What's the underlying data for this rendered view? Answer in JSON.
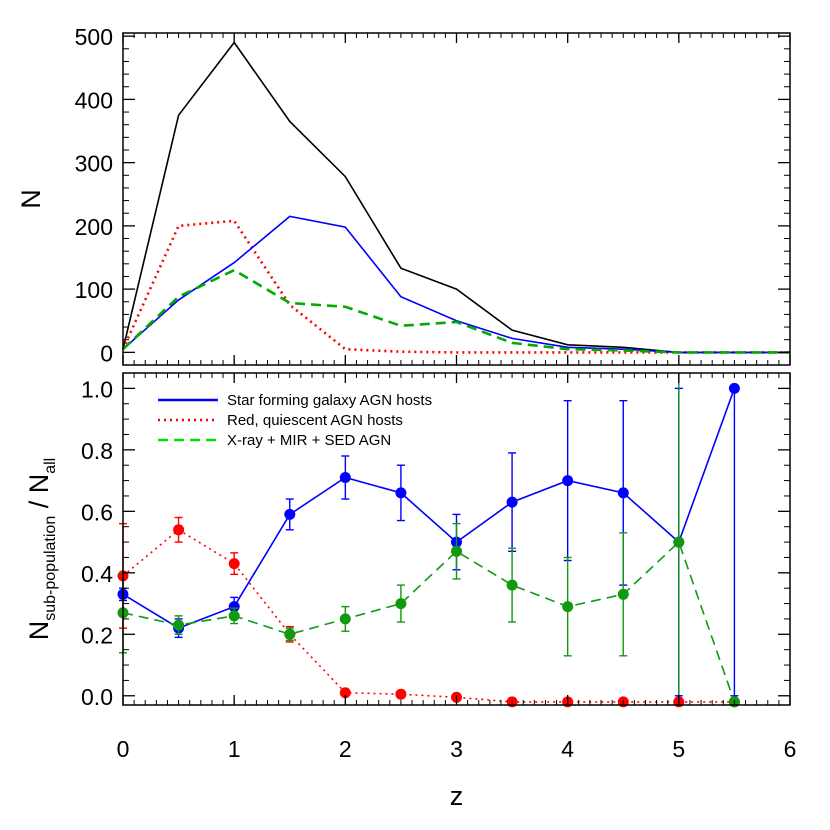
{
  "colors": {
    "all": "#000000",
    "star_forming": "#0000ff",
    "red_quiescent": "#ff0000",
    "xray_mir_sed": "#00aa00",
    "xray_mir_sed_legend": "#00dd00",
    "ratio_xray_mir_sed": "#119911"
  },
  "chart_data": [
    {
      "type": "line",
      "panel": "top",
      "xlabel": "",
      "ylabel": "N",
      "xlim": [
        0,
        6
      ],
      "ylim": [
        -20,
        505
      ],
      "x_ticks": [
        0,
        1,
        2,
        3,
        4,
        5,
        6
      ],
      "x_tick_labels": [
        "",
        "",
        "",
        "",
        "",
        "",
        ""
      ],
      "y_ticks": [
        0,
        100,
        200,
        300,
        400,
        500
      ],
      "y_tick_labels": [
        "0",
        "100",
        "200",
        "300",
        "400",
        "500"
      ],
      "x": [
        0,
        0.5,
        1,
        1.5,
        2,
        2.5,
        3,
        3.5,
        4,
        4.5,
        5,
        5.5,
        6
      ],
      "series": [
        {
          "key": "all",
          "style": "solid",
          "values": [
            5,
            375,
            490,
            365,
            278,
            133,
            100,
            35,
            12,
            8,
            0,
            0,
            0
          ]
        },
        {
          "key": "red_quiescent",
          "style": "dotted",
          "values": [
            5,
            200,
            208,
            75,
            5,
            1,
            0,
            0,
            0,
            0,
            0,
            0,
            0
          ]
        },
        {
          "key": "star_forming",
          "style": "solid",
          "values": [
            5,
            83,
            142,
            215,
            198,
            88,
            50,
            22,
            8,
            5,
            0,
            0,
            0
          ]
        },
        {
          "key": "xray_mir_sed",
          "style": "dashed",
          "values": [
            5,
            88,
            130,
            78,
            72,
            42,
            48,
            15,
            5,
            3,
            0,
            0,
            0
          ]
        }
      ]
    },
    {
      "type": "line",
      "panel": "bottom",
      "xlabel": "z",
      "ylabel_main": "N",
      "ylabel_sub": "sub-population",
      "ylabel_div": " / N",
      "ylabel_sub2": "all",
      "xlim": [
        0,
        6
      ],
      "ylim": [
        -0.03,
        1.05
      ],
      "x_ticks": [
        0,
        1,
        2,
        3,
        4,
        5,
        6
      ],
      "x_tick_labels": [
        "0",
        "1",
        "2",
        "3",
        "4",
        "5",
        "6"
      ],
      "y_ticks": [
        0,
        0.2,
        0.4,
        0.6,
        0.8,
        1.0
      ],
      "y_tick_labels": [
        "0.0",
        "0.2",
        "0.4",
        "0.6",
        "0.8",
        "1.0"
      ],
      "legend": {
        "placement": "top-left",
        "entries": [
          {
            "key": "star_forming",
            "style": "solid",
            "label": "Star forming galaxy AGN hosts"
          },
          {
            "key": "red_quiescent",
            "style": "dotted",
            "label": "Red, quiescent AGN hosts"
          },
          {
            "key": "xray_mir_sed",
            "style": "dashed",
            "label": "X-ray + MIR + SED AGN"
          }
        ]
      },
      "series": [
        {
          "key": "star_forming",
          "style": "solid",
          "markers": true,
          "x": [
            0,
            0.5,
            1,
            1.5,
            2,
            2.5,
            3,
            3.5,
            4,
            4.5,
            5,
            5.5
          ],
          "y": [
            0.33,
            0.22,
            0.29,
            0.59,
            0.71,
            0.66,
            0.5,
            0.63,
            0.7,
            0.66,
            0.5,
            1.0
          ],
          "err_low": [
            0.02,
            0.03,
            0.03,
            0.05,
            0.07,
            0.09,
            0.09,
            0.16,
            0.26,
            0.3,
            0.5,
            1.0
          ],
          "err_high": [
            0.02,
            0.03,
            0.03,
            0.05,
            0.07,
            0.09,
            0.09,
            0.16,
            0.26,
            0.3,
            0.5,
            0.0
          ]
        },
        {
          "key": "red_quiescent",
          "style": "dotted",
          "markers": true,
          "x": [
            0,
            0.5,
            1,
            1.5,
            2,
            2.5,
            3,
            3.5,
            4,
            4.5,
            5,
            5.5
          ],
          "y": [
            0.39,
            0.54,
            0.43,
            0.2,
            0.01,
            0.005,
            -0.005,
            -0.02,
            -0.02,
            -0.02,
            -0.02,
            -0.02
          ],
          "err_low": [
            0.17,
            0.04,
            0.035,
            0.025,
            0.005,
            0.005,
            0.005,
            0,
            0,
            0,
            0,
            0
          ],
          "err_high": [
            0.17,
            0.04,
            0.035,
            0.025,
            0.005,
            0.005,
            0.005,
            0,
            0,
            0,
            0,
            0
          ]
        },
        {
          "key": "ratio_xray_mir_sed",
          "style": "dashed",
          "markers": true,
          "x": [
            0,
            0.5,
            1,
            1.5,
            2,
            2.5,
            3,
            3.5,
            4,
            4.5,
            5,
            5.5
          ],
          "y": [
            0.27,
            0.23,
            0.26,
            0.2,
            0.25,
            0.3,
            0.47,
            0.36,
            0.29,
            0.33,
            0.5,
            -0.02
          ],
          "err_low": [
            0.13,
            0.03,
            0.025,
            0.02,
            0.04,
            0.06,
            0.09,
            0.12,
            0.16,
            0.2,
            0.55,
            0
          ],
          "err_high": [
            0.13,
            0.03,
            0.025,
            0.02,
            0.04,
            0.06,
            0.09,
            0.12,
            0.16,
            0.2,
            0.6,
            0
          ]
        }
      ]
    }
  ]
}
